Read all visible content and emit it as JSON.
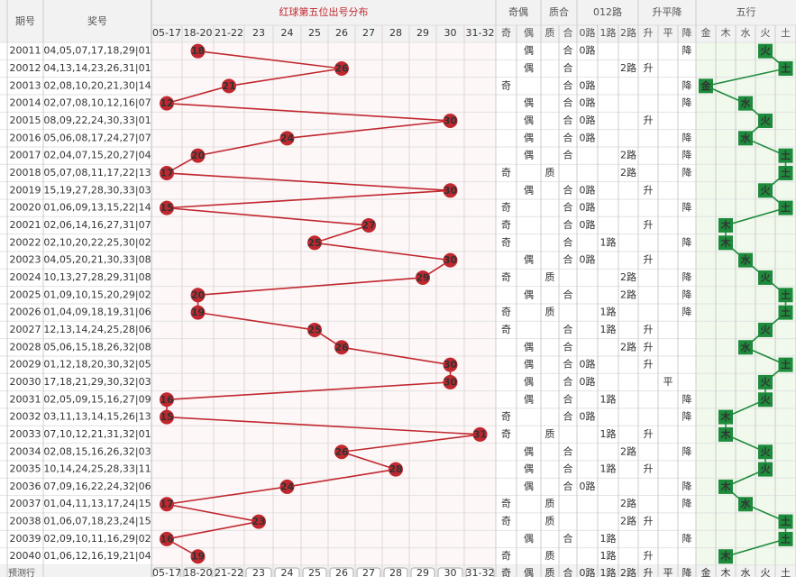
{
  "header": {
    "period": "期号",
    "numbers": "奖号",
    "distribution": "红球第五位出号分布",
    "groups": [
      {
        "title": "奇偶",
        "columns": [
          "奇",
          "偶"
        ]
      },
      {
        "title": "质合",
        "columns": [
          "质",
          "合"
        ]
      },
      {
        "title": "012路",
        "columns": [
          "0路",
          "1路",
          "2路"
        ]
      },
      {
        "title": "升平降",
        "columns": [
          "升",
          "平",
          "降"
        ]
      },
      {
        "title": "五行",
        "columns": [
          "金",
          "木",
          "水",
          "火",
          "土"
        ]
      }
    ]
  },
  "bins": [
    "05-17",
    "18-20",
    "21-22",
    "23",
    "24",
    "25",
    "26",
    "27",
    "28",
    "29",
    "30",
    "31-32"
  ],
  "rows": [
    {
      "period": "20011",
      "numbers": "04,05,07,17,18,29|01",
      "fifth": 18,
      "parity": "偶",
      "prime": "合",
      "route": "0路",
      "trend": "降",
      "element": "火"
    },
    {
      "period": "20012",
      "numbers": "04,13,14,23,26,31|01",
      "fifth": 26,
      "parity": "偶",
      "prime": "合",
      "route": "2路",
      "trend": "升",
      "element": "土"
    },
    {
      "period": "20013",
      "numbers": "02,08,10,20,21,30|14",
      "fifth": 21,
      "parity": "奇",
      "prime": "合",
      "route": "0路",
      "trend": "降",
      "element": "金"
    },
    {
      "period": "20014",
      "numbers": "02,07,08,10,12,16|07",
      "fifth": 12,
      "parity": "偶",
      "prime": "合",
      "route": "0路",
      "trend": "降",
      "element": "水"
    },
    {
      "period": "20015",
      "numbers": "08,09,22,24,30,33|01",
      "fifth": 30,
      "parity": "偶",
      "prime": "合",
      "route": "0路",
      "trend": "升",
      "element": "火"
    },
    {
      "period": "20016",
      "numbers": "05,06,08,17,24,27|07",
      "fifth": 24,
      "parity": "偶",
      "prime": "合",
      "route": "0路",
      "trend": "降",
      "element": "水"
    },
    {
      "period": "20017",
      "numbers": "02,04,07,15,20,27|04",
      "fifth": 20,
      "parity": "偶",
      "prime": "合",
      "route": "2路",
      "trend": "降",
      "element": "土"
    },
    {
      "period": "20018",
      "numbers": "05,07,08,11,17,22|13",
      "fifth": 17,
      "parity": "奇",
      "prime": "质",
      "route": "2路",
      "trend": "降",
      "element": "土"
    },
    {
      "period": "20019",
      "numbers": "15,19,27,28,30,33|03",
      "fifth": 30,
      "parity": "偶",
      "prime": "合",
      "route": "0路",
      "trend": "升",
      "element": "火"
    },
    {
      "period": "20020",
      "numbers": "01,06,09,13,15,22|14",
      "fifth": 15,
      "parity": "奇",
      "prime": "合",
      "route": "0路",
      "trend": "降",
      "element": "土"
    },
    {
      "period": "20021",
      "numbers": "02,06,14,16,27,31|07",
      "fifth": 27,
      "parity": "奇",
      "prime": "合",
      "route": "0路",
      "trend": "升",
      "element": "木"
    },
    {
      "period": "20022",
      "numbers": "02,10,20,22,25,30|02",
      "fifth": 25,
      "parity": "奇",
      "prime": "合",
      "route": "1路",
      "trend": "降",
      "element": "木"
    },
    {
      "period": "20023",
      "numbers": "04,05,20,21,30,33|08",
      "fifth": 30,
      "parity": "偶",
      "prime": "合",
      "route": "0路",
      "trend": "升",
      "element": "水"
    },
    {
      "period": "20024",
      "numbers": "10,13,27,28,29,31|08",
      "fifth": 29,
      "parity": "奇",
      "prime": "质",
      "route": "2路",
      "trend": "降",
      "element": "火"
    },
    {
      "period": "20025",
      "numbers": "01,09,10,15,20,29|02",
      "fifth": 20,
      "parity": "偶",
      "prime": "合",
      "route": "2路",
      "trend": "降",
      "element": "土"
    },
    {
      "period": "20026",
      "numbers": "01,04,09,18,19,31|06",
      "fifth": 19,
      "parity": "奇",
      "prime": "质",
      "route": "1路",
      "trend": "降",
      "element": "土"
    },
    {
      "period": "20027",
      "numbers": "12,13,14,24,25,28|06",
      "fifth": 25,
      "parity": "奇",
      "prime": "合",
      "route": "1路",
      "trend": "升",
      "element": "火"
    },
    {
      "period": "20028",
      "numbers": "05,06,15,18,26,32|08",
      "fifth": 26,
      "parity": "偶",
      "prime": "合",
      "route": "2路",
      "trend": "升",
      "element": "水"
    },
    {
      "period": "20029",
      "numbers": "01,12,18,20,30,32|05",
      "fifth": 30,
      "parity": "偶",
      "prime": "合",
      "route": "0路",
      "trend": "升",
      "element": "土"
    },
    {
      "period": "20030",
      "numbers": "17,18,21,29,30,32|03",
      "fifth": 30,
      "parity": "偶",
      "prime": "合",
      "route": "0路",
      "trend": "平",
      "element": "火"
    },
    {
      "period": "20031",
      "numbers": "02,05,09,15,16,27|09",
      "fifth": 16,
      "parity": "偶",
      "prime": "合",
      "route": "1路",
      "trend": "降",
      "element": "火"
    },
    {
      "period": "20032",
      "numbers": "03,11,13,14,15,26|13",
      "fifth": 15,
      "parity": "奇",
      "prime": "合",
      "route": "0路",
      "trend": "降",
      "element": "木"
    },
    {
      "period": "20033",
      "numbers": "07,10,12,21,31,32|01",
      "fifth": 31,
      "parity": "奇",
      "prime": "质",
      "route": "1路",
      "trend": "升",
      "element": "木"
    },
    {
      "period": "20034",
      "numbers": "02,08,15,16,26,32|03",
      "fifth": 26,
      "parity": "偶",
      "prime": "合",
      "route": "2路",
      "trend": "降",
      "element": "火"
    },
    {
      "period": "20035",
      "numbers": "10,14,24,25,28,33|11",
      "fifth": 28,
      "parity": "偶",
      "prime": "合",
      "route": "1路",
      "trend": "升",
      "element": "火"
    },
    {
      "period": "20036",
      "numbers": "07,09,16,22,24,32|06",
      "fifth": 24,
      "parity": "偶",
      "prime": "合",
      "route": "0路",
      "trend": "降",
      "element": "木"
    },
    {
      "period": "20037",
      "numbers": "01,04,11,13,17,24|15",
      "fifth": 17,
      "parity": "奇",
      "prime": "质",
      "route": "2路",
      "trend": "降",
      "element": "水"
    },
    {
      "period": "20038",
      "numbers": "01,06,07,18,23,24|15",
      "fifth": 23,
      "parity": "奇",
      "prime": "质",
      "route": "2路",
      "trend": "升",
      "element": "土"
    },
    {
      "period": "20039",
      "numbers": "02,09,10,11,16,29|02",
      "fifth": 16,
      "parity": "偶",
      "prime": "合",
      "route": "1路",
      "trend": "降",
      "element": "土"
    },
    {
      "period": "20040",
      "numbers": "01,06,12,16,19,21|04",
      "fifth": 19,
      "parity": "奇",
      "prime": "质",
      "route": "1路",
      "trend": "升",
      "element": "木"
    }
  ],
  "footer": {
    "label": "预测行"
  }
}
